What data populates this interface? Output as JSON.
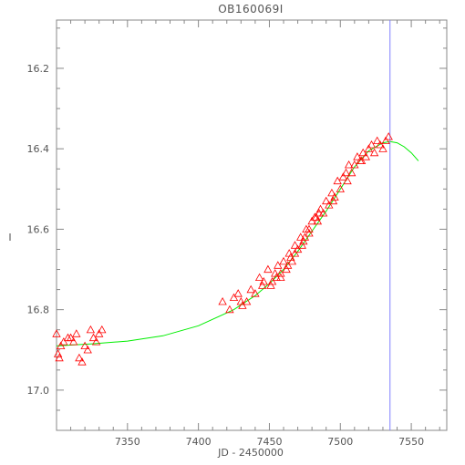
{
  "chart_data": {
    "type": "scatter",
    "title": "OB160069I",
    "xlabel": "JD - 2450000",
    "ylabel": "I",
    "xlim": [
      7300,
      7575
    ],
    "ylim": [
      17.1,
      16.08
    ],
    "y_inverted": true,
    "xticks": [
      7350,
      7400,
      7450,
      7500,
      7550
    ],
    "xtick_labels": [
      "7350",
      "7400",
      "7450",
      "7500",
      "7550"
    ],
    "yticks": [
      16.2,
      16.4,
      16.6,
      16.8,
      17.0
    ],
    "ytick_labels": [
      "16.2",
      "16.4",
      "16.6",
      "16.8",
      "17.0"
    ],
    "grid": false,
    "colors": {
      "observations": "#ff0000",
      "model": "#00ee00",
      "peak_marker": "#8080ff",
      "axes": "#888888",
      "text": "#555555"
    },
    "vertical_line": {
      "x": 7535
    },
    "model": {
      "x": [
        7300,
        7325,
        7350,
        7375,
        7400,
        7425,
        7440,
        7450,
        7460,
        7470,
        7480,
        7490,
        7500,
        7510,
        7520,
        7530,
        7535,
        7540,
        7545,
        7550,
        7555
      ],
      "y": [
        16.89,
        16.885,
        16.878,
        16.865,
        16.84,
        16.8,
        16.765,
        16.735,
        16.7,
        16.655,
        16.605,
        16.555,
        16.5,
        16.445,
        16.405,
        16.385,
        16.382,
        16.385,
        16.395,
        16.41,
        16.43
      ]
    },
    "observations": {
      "x": [
        7300,
        7301,
        7302,
        7303,
        7305,
        7308,
        7310,
        7312,
        7314,
        7316,
        7318,
        7320,
        7322,
        7324,
        7326,
        7328,
        7330,
        7332,
        7417,
        7422,
        7425,
        7428,
        7431,
        7434,
        7437,
        7440,
        7443,
        7446,
        7449,
        7451,
        7454,
        7456,
        7458,
        7460,
        7462,
        7464,
        7466,
        7468,
        7470,
        7472,
        7474,
        7476,
        7478,
        7480,
        7482,
        7484,
        7486,
        7488,
        7490,
        7492,
        7494,
        7496,
        7498,
        7500,
        7502,
        7504,
        7506,
        7508,
        7510,
        7512,
        7514,
        7516,
        7518,
        7520,
        7522,
        7524,
        7526,
        7528,
        7530,
        7532,
        7534,
        7430,
        7445,
        7455,
        7465,
        7475,
        7485,
        7495,
        7505,
        7515,
        7452,
        7458,
        7463,
        7468,
        7473,
        7478,
        7483
      ],
      "y": [
        16.86,
        16.91,
        16.92,
        16.89,
        16.88,
        16.87,
        16.87,
        16.88,
        16.86,
        16.92,
        16.93,
        16.89,
        16.9,
        16.85,
        16.87,
        16.88,
        16.86,
        16.85,
        16.78,
        16.8,
        16.77,
        16.76,
        16.79,
        16.78,
        16.75,
        16.76,
        16.72,
        16.73,
        16.7,
        16.74,
        16.71,
        16.69,
        16.72,
        16.68,
        16.7,
        16.66,
        16.68,
        16.64,
        16.65,
        16.62,
        16.63,
        16.6,
        16.61,
        16.58,
        16.57,
        16.58,
        16.55,
        16.56,
        16.53,
        16.54,
        16.51,
        16.52,
        16.48,
        16.5,
        16.47,
        16.46,
        16.44,
        16.46,
        16.44,
        16.42,
        16.43,
        16.41,
        16.42,
        16.4,
        16.39,
        16.41,
        16.38,
        16.39,
        16.4,
        16.38,
        16.37,
        16.78,
        16.74,
        16.72,
        16.67,
        16.62,
        16.56,
        16.53,
        16.48,
        16.43,
        16.73,
        16.71,
        16.69,
        16.66,
        16.64,
        16.6,
        16.57
      ]
    }
  }
}
